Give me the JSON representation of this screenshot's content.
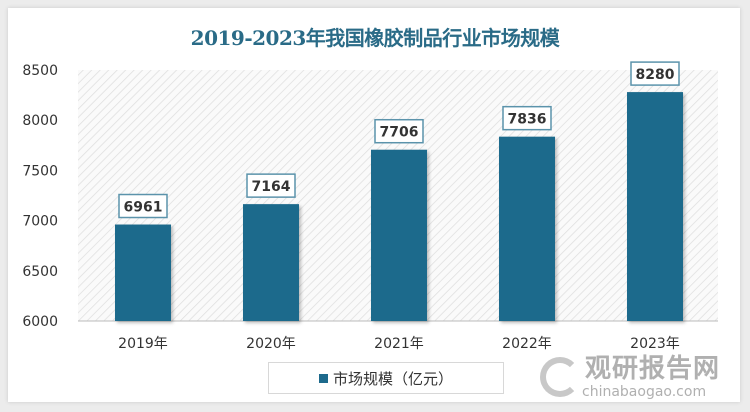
{
  "chart_data": {
    "type": "bar",
    "title": "2019-2023年我国橡胶制品行业市场规模",
    "categories": [
      "2019年",
      "2020年",
      "2021年",
      "2022年",
      "2023年"
    ],
    "series": [
      {
        "name": "市场规模（亿元）",
        "values": [
          6961,
          7164,
          7706,
          7836,
          8280
        ]
      }
    ],
    "data_labels": [
      "6961",
      "7164",
      "7706",
      "7836",
      "8280"
    ],
    "yticks": [
      "6000",
      "6500",
      "7000",
      "7500",
      "8000",
      "8500"
    ],
    "ylim": [
      6000,
      8500
    ],
    "grid": false,
    "legend_position": "bottom",
    "bar_color": "#1d6a8c",
    "title_color": "#2a6b87"
  },
  "watermark": {
    "cn": "观研报告网",
    "en": "chinabaogao.com"
  }
}
